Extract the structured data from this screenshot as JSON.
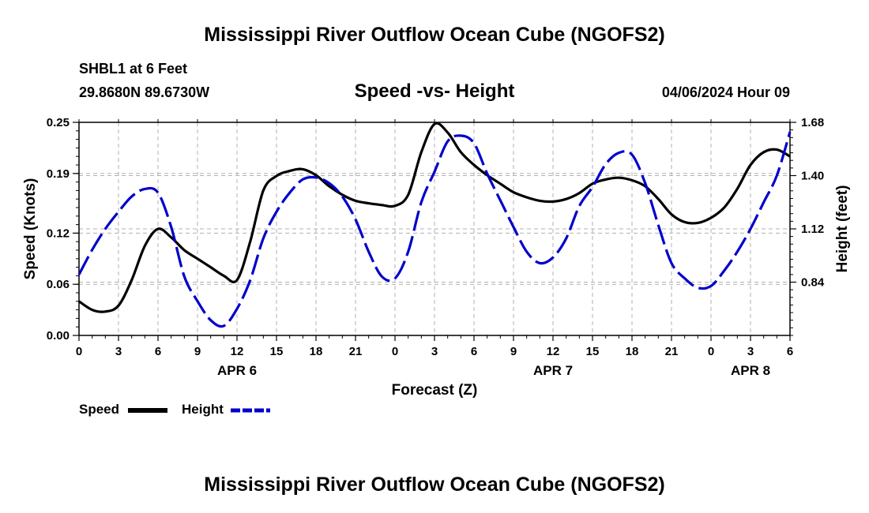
{
  "page": {
    "title_top": "Mississippi River Outflow Ocean Cube (NGOFS2)",
    "title_bottom": "Mississippi River Outflow Ocean Cube (NGOFS2)",
    "station": "SHBL1 at 6 Feet",
    "coords": "29.8680N  89.6730W",
    "date": "04/06/2024 Hour 09"
  },
  "legend": {
    "speed_label": "Speed",
    "height_label": "Height"
  },
  "chart_data": {
    "type": "line",
    "title": "Speed -vs- Height",
    "xlabel": "Forecast (Z)",
    "ylabel_left": "Speed (Knots)",
    "ylabel_right": "Height (feet)",
    "x_range": [
      0,
      54
    ],
    "x_tick_values": [
      0,
      3,
      6,
      9,
      12,
      15,
      18,
      21,
      24,
      27,
      30,
      33,
      36,
      39,
      42,
      45,
      48,
      51,
      54
    ],
    "x_tick_labels": [
      "0",
      "3",
      "6",
      "9",
      "12",
      "15",
      "18",
      "21",
      "0",
      "3",
      "6",
      "9",
      "12",
      "15",
      "18",
      "21",
      "0",
      "3",
      "6"
    ],
    "day_labels": [
      {
        "x": 12,
        "label": "APR 6"
      },
      {
        "x": 36,
        "label": "APR 7"
      },
      {
        "x": 51,
        "label": "APR 8"
      }
    ],
    "y_left_range": [
      0,
      0.25
    ],
    "y_left_ticks": [
      0.0,
      0.06,
      0.12,
      0.19,
      0.25
    ],
    "y_left_tick_labels": [
      "0.00",
      "0.06",
      "0.12",
      "0.19",
      "0.25"
    ],
    "y_right_range": [
      0.56,
      1.68
    ],
    "y_right_ticks": [
      0.84,
      1.12,
      1.4,
      1.68
    ],
    "y_right_tick_labels": [
      "0.84",
      "1.12",
      "1.40",
      "1.68"
    ],
    "grid": true,
    "series": [
      {
        "name": "Speed",
        "axis": "left",
        "color": "#000000",
        "style": "solid",
        "x": [
          0,
          1,
          2,
          3,
          4,
          5,
          6,
          7,
          8,
          9,
          10,
          11,
          12,
          13,
          14,
          15,
          16,
          17,
          18,
          19,
          20,
          21,
          22,
          23,
          24,
          25,
          26,
          27,
          28,
          29,
          30,
          31,
          32,
          33,
          34,
          35,
          36,
          37,
          38,
          39,
          40,
          41,
          42,
          43,
          44,
          45,
          46,
          47,
          48,
          49,
          50,
          51,
          52,
          53,
          54
        ],
        "values": [
          0.04,
          0.03,
          0.028,
          0.035,
          0.065,
          0.105,
          0.125,
          0.115,
          0.1,
          0.09,
          0.08,
          0.07,
          0.065,
          0.11,
          0.17,
          0.187,
          0.193,
          0.195,
          0.188,
          0.175,
          0.165,
          0.158,
          0.155,
          0.153,
          0.152,
          0.165,
          0.215,
          0.248,
          0.238,
          0.215,
          0.2,
          0.188,
          0.178,
          0.168,
          0.162,
          0.158,
          0.157,
          0.16,
          0.167,
          0.178,
          0.183,
          0.185,
          0.182,
          0.175,
          0.16,
          0.142,
          0.133,
          0.132,
          0.138,
          0.15,
          0.172,
          0.2,
          0.215,
          0.218,
          0.21
        ]
      },
      {
        "name": "Height",
        "axis": "right",
        "color": "#0000cc",
        "style": "dashed",
        "x": [
          0,
          1,
          2,
          3,
          4,
          5,
          6,
          7,
          8,
          9,
          10,
          11,
          12,
          13,
          14,
          15,
          16,
          17,
          18,
          19,
          20,
          21,
          22,
          23,
          24,
          25,
          26,
          27,
          28,
          29,
          30,
          31,
          32,
          33,
          34,
          35,
          36,
          37,
          38,
          39,
          40,
          41,
          42,
          43,
          44,
          45,
          46,
          47,
          48,
          49,
          50,
          51,
          52,
          53,
          54
        ],
        "values": [
          0.88,
          1.01,
          1.12,
          1.21,
          1.29,
          1.33,
          1.31,
          1.13,
          0.87,
          0.74,
          0.64,
          0.61,
          0.7,
          0.85,
          1.07,
          1.21,
          1.31,
          1.38,
          1.39,
          1.36,
          1.29,
          1.17,
          1.0,
          0.87,
          0.86,
          1.0,
          1.26,
          1.42,
          1.58,
          1.61,
          1.57,
          1.41,
          1.27,
          1.13,
          1.0,
          0.94,
          0.97,
          1.07,
          1.24,
          1.34,
          1.46,
          1.52,
          1.51,
          1.36,
          1.14,
          0.94,
          0.86,
          0.81,
          0.82,
          0.9,
          1.0,
          1.12,
          1.26,
          1.4,
          1.63
        ]
      }
    ]
  }
}
